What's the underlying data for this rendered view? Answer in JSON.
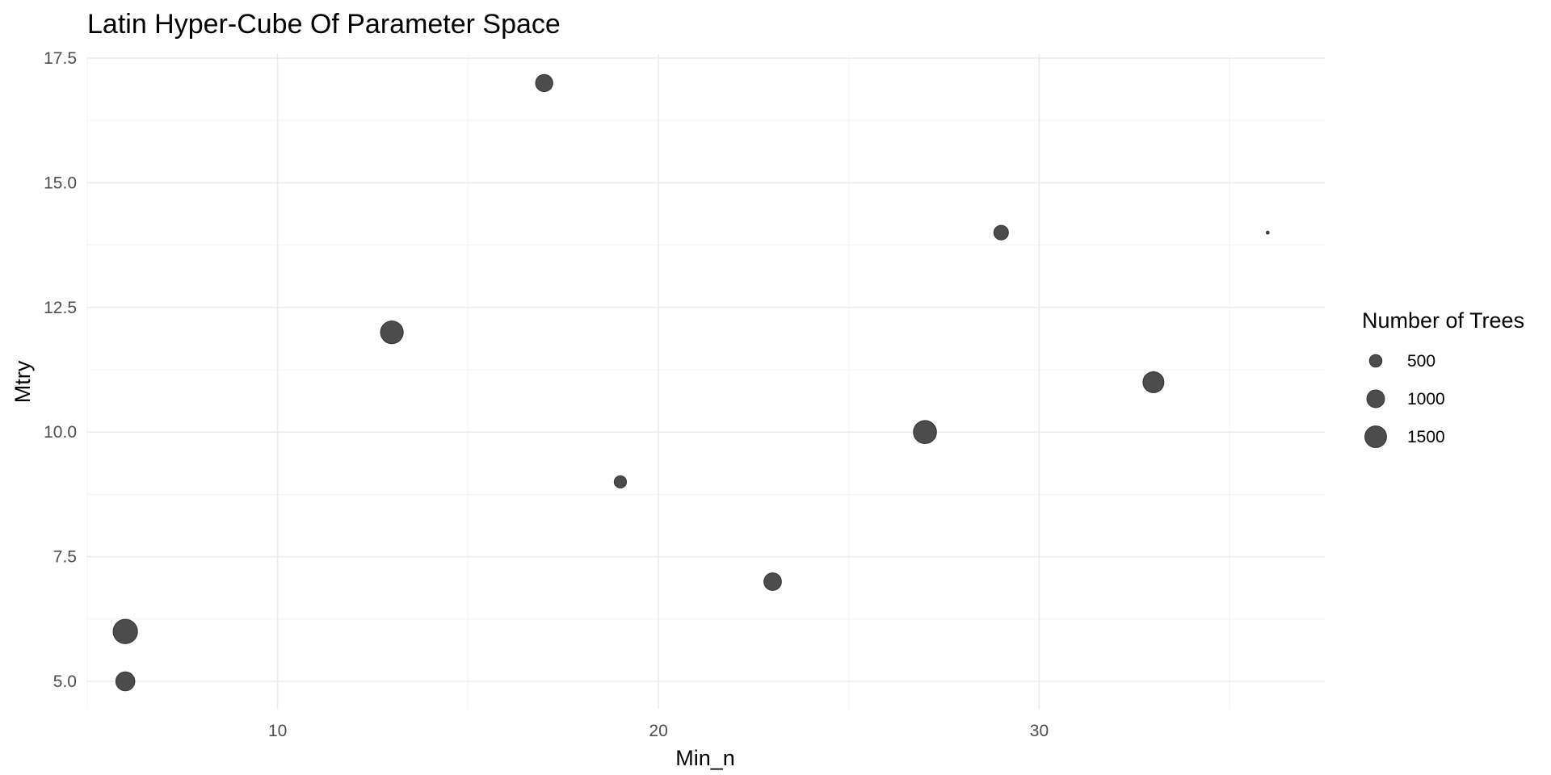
{
  "chart_data": {
    "type": "scatter",
    "title": "Latin Hyper-Cube Of Parameter Space",
    "xlabel": "Min_n",
    "ylabel": "Mtry",
    "xlim": [
      5,
      37.5
    ],
    "ylim": [
      4.5,
      17.5
    ],
    "x_ticks": [
      10,
      20,
      30
    ],
    "y_ticks": [
      5.0,
      7.5,
      10.0,
      12.5,
      15.0,
      17.5
    ],
    "y_tick_labels": [
      "5.0",
      "7.5",
      "10.0",
      "12.5",
      "15.0",
      "17.5"
    ],
    "x_minor_ticks": [
      5,
      15,
      25,
      35
    ],
    "y_minor_ticks": [
      6.25,
      8.75,
      11.25,
      13.75,
      16.25
    ],
    "grid": true,
    "legend": {
      "title": "Number of Trees",
      "placement": "right",
      "entries": [
        {
          "label": "500",
          "value": 500
        },
        {
          "label": "1000",
          "value": 1000
        },
        {
          "label": "1500",
          "value": 1500
        }
      ]
    },
    "size_variable": "Number of Trees",
    "point_color": "#333333",
    "points": [
      {
        "x": 6,
        "y": 6,
        "trees": 1900
      },
      {
        "x": 6,
        "y": 5,
        "trees": 1150
      },
      {
        "x": 13,
        "y": 12,
        "trees": 1650
      },
      {
        "x": 17,
        "y": 17,
        "trees": 950
      },
      {
        "x": 19,
        "y": 9,
        "trees": 480
      },
      {
        "x": 23,
        "y": 7,
        "trees": 980
      },
      {
        "x": 27,
        "y": 10,
        "trees": 1700
      },
      {
        "x": 29,
        "y": 14,
        "trees": 680
      },
      {
        "x": 33,
        "y": 11,
        "trees": 1400
      },
      {
        "x": 36,
        "y": 14,
        "trees": 30
      }
    ]
  }
}
